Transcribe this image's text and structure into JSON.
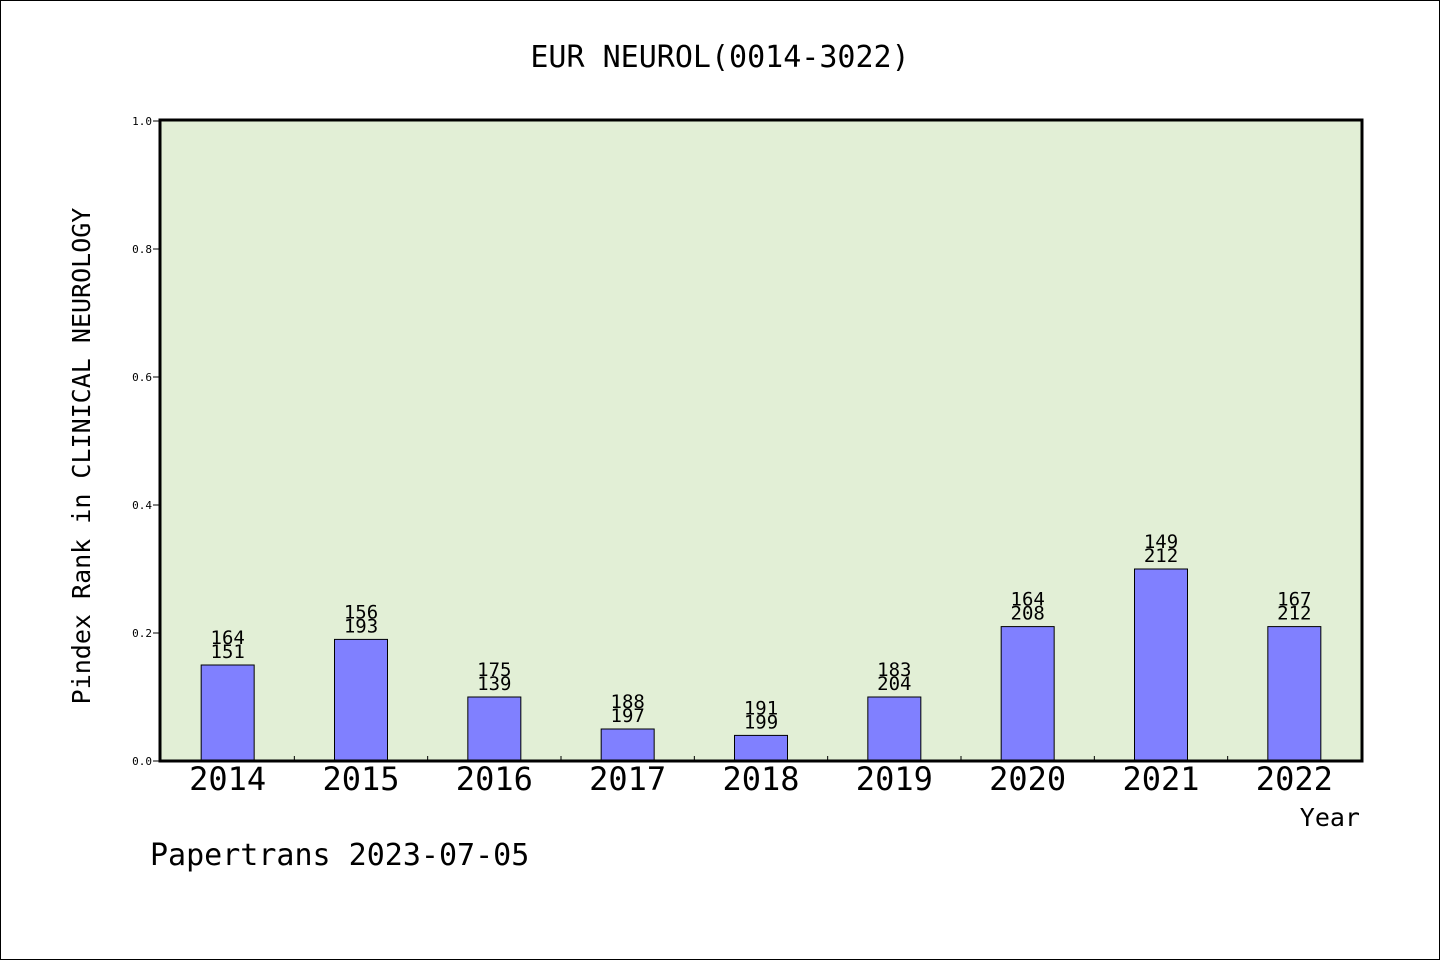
{
  "chart_data": {
    "type": "bar",
    "title": "EUR NEUROL(0014-3022)",
    "xlabel": "Year",
    "ylabel": "Pindex Rank in CLINICAL NEUROLOGY",
    "footer": "Papertrans 2023-07-05",
    "categories": [
      "2014",
      "2015",
      "2016",
      "2017",
      "2018",
      "2019",
      "2020",
      "2021",
      "2022"
    ],
    "values": [
      0.15,
      0.19,
      0.1,
      0.05,
      0.04,
      0.1,
      0.21,
      0.3,
      0.21
    ],
    "labels_top": [
      "164",
      "156",
      "175",
      "188",
      "191",
      "183",
      "164",
      "149",
      "167"
    ],
    "labels_bottom": [
      "151",
      "193",
      "139",
      "197",
      "199",
      "204",
      "208",
      "212",
      "212"
    ],
    "ylim": [
      0,
      1.0
    ],
    "yticks": [
      "0.0",
      "0.2",
      "0.4",
      "0.6",
      "0.8",
      "1.0"
    ],
    "grid": false,
    "colors": {
      "plot_background": "#e2efd6",
      "bar_fill": "#8080ff",
      "bar_edge": "#000000"
    }
  }
}
